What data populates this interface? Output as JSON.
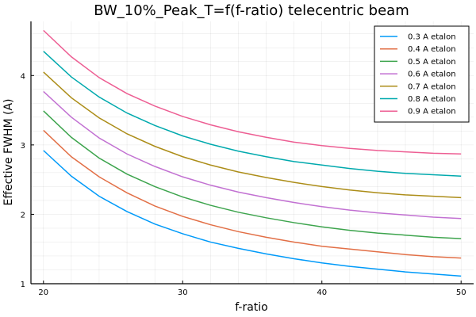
{
  "chart_data": {
    "type": "line",
    "title": "BW_10%_Peak_T=f(f-ratio) telecentric beam",
    "xlabel": "f-ratio",
    "ylabel": "Effective FWHM (A)",
    "xlim": [
      19.1,
      50.9
    ],
    "ylim": [
      1.0,
      4.78
    ],
    "xticks": [
      20,
      30,
      40,
      50
    ],
    "yticks": [
      1,
      2,
      3,
      4
    ],
    "grid": true,
    "legend_position": "top-right",
    "x": [
      20,
      22,
      24,
      26,
      28,
      30,
      32,
      34,
      36,
      38,
      40,
      42,
      44,
      46,
      48,
      50
    ],
    "series": [
      {
        "name": "0.3 A etalon",
        "color": "#009af9",
        "values": [
          2.92,
          2.55,
          2.26,
          2.04,
          1.86,
          1.72,
          1.6,
          1.51,
          1.43,
          1.36,
          1.3,
          1.25,
          1.21,
          1.17,
          1.14,
          1.11
        ]
      },
      {
        "name": "0.4 A etalon",
        "color": "#e26f46",
        "values": [
          3.21,
          2.83,
          2.54,
          2.31,
          2.12,
          1.97,
          1.85,
          1.75,
          1.67,
          1.6,
          1.54,
          1.5,
          1.46,
          1.42,
          1.39,
          1.37
        ]
      },
      {
        "name": "0.5 A etalon",
        "color": "#3da44d",
        "values": [
          3.49,
          3.11,
          2.81,
          2.58,
          2.4,
          2.25,
          2.13,
          2.03,
          1.95,
          1.88,
          1.82,
          1.77,
          1.73,
          1.7,
          1.67,
          1.65
        ]
      },
      {
        "name": "0.6 A etalon",
        "color": "#c271d2",
        "values": [
          3.77,
          3.4,
          3.1,
          2.87,
          2.69,
          2.54,
          2.42,
          2.32,
          2.24,
          2.17,
          2.11,
          2.06,
          2.02,
          1.99,
          1.96,
          1.94
        ]
      },
      {
        "name": "0.7 A etalon",
        "color": "#ac8d18",
        "values": [
          4.05,
          3.68,
          3.39,
          3.16,
          2.98,
          2.83,
          2.71,
          2.61,
          2.53,
          2.46,
          2.4,
          2.35,
          2.31,
          2.28,
          2.26,
          2.24
        ]
      },
      {
        "name": "0.8 A etalon",
        "color": "#00a9ad",
        "values": [
          4.35,
          3.98,
          3.69,
          3.46,
          3.28,
          3.13,
          3.01,
          2.91,
          2.83,
          2.76,
          2.71,
          2.66,
          2.62,
          2.59,
          2.57,
          2.55
        ]
      },
      {
        "name": "0.9 A etalon",
        "color": "#ed5e93",
        "values": [
          4.65,
          4.27,
          3.97,
          3.74,
          3.56,
          3.41,
          3.29,
          3.19,
          3.11,
          3.04,
          2.99,
          2.95,
          2.92,
          2.9,
          2.88,
          2.87
        ]
      }
    ]
  }
}
